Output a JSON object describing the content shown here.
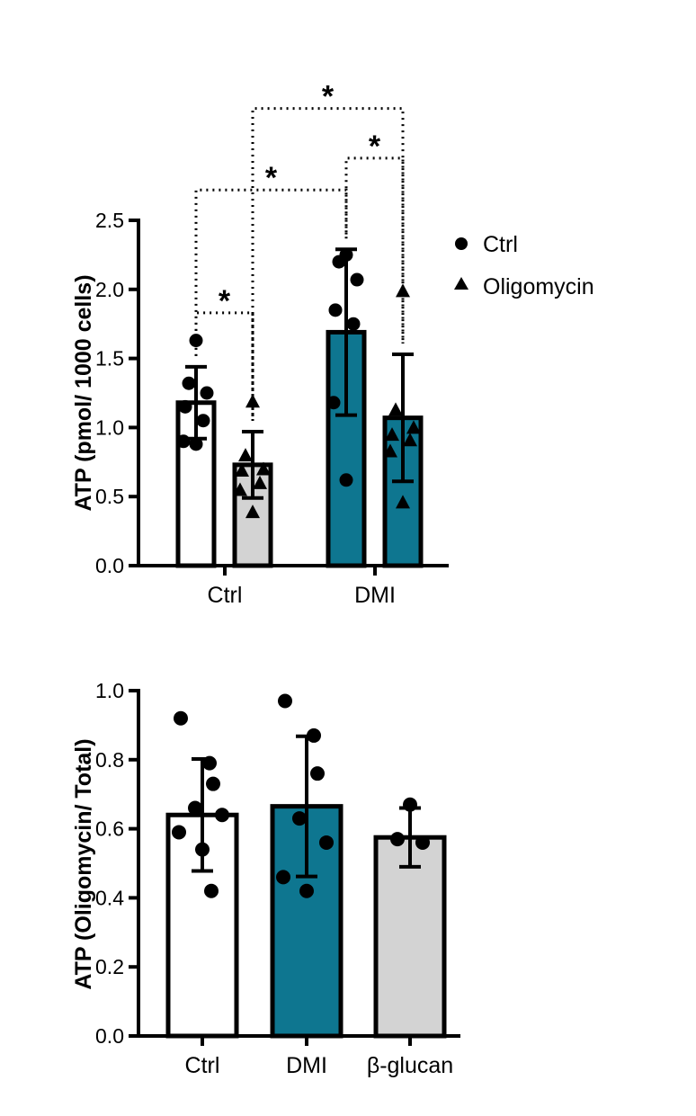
{
  "chart_data": [
    {
      "type": "bar",
      "ylabel": "ATP (pmol/ 1000 cells)",
      "ylim": [
        0,
        2.5
      ],
      "yticks": [
        0.0,
        0.5,
        1.0,
        1.5,
        2.0,
        2.5
      ],
      "ytick_labels": [
        "0.0",
        "0.5",
        "1.0",
        "1.5",
        "2.0",
        "2.5"
      ],
      "categories": [
        "Ctrl",
        "DMI"
      ],
      "legend": {
        "placement": "top-right",
        "entries": [
          {
            "label": "Ctrl",
            "marker": "circle"
          },
          {
            "label": "Oligomycin",
            "marker": "triangle"
          }
        ]
      },
      "series": [
        {
          "name": "Ctrl",
          "marker": "circle",
          "values": [
            1.18,
            1.69
          ],
          "errors": [
            0.26,
            0.6
          ],
          "fills": [
            "#ffffff",
            "#0e7690"
          ],
          "points": [
            [
              1.63,
              1.32,
              1.25,
              1.15,
              1.05,
              0.9,
              0.88
            ],
            [
              2.25,
              2.2,
              2.07,
              1.85,
              1.75,
              1.18,
              0.62
            ]
          ]
        },
        {
          "name": "Oligomycin",
          "marker": "triangle",
          "values": [
            0.73,
            1.07
          ],
          "errors": [
            0.24,
            0.46
          ],
          "fills": [
            "#d3d3d3",
            "#0e7690"
          ],
          "points": [
            [
              1.19,
              0.8,
              0.7,
              0.69,
              0.6,
              0.55,
              0.39
            ],
            [
              1.99,
              1.13,
              1.0,
              0.95,
              0.91,
              0.83,
              0.46
            ]
          ]
        }
      ],
      "significance": [
        {
          "from": [
            0,
            0
          ],
          "to": [
            0,
            1
          ],
          "level": 1.83,
          "label": "*"
        },
        {
          "from": [
            0,
            0
          ],
          "to": [
            1,
            0
          ],
          "level": 2.72,
          "label": "*"
        },
        {
          "from": [
            0,
            1
          ],
          "to": [
            1,
            1
          ],
          "level": 3.31,
          "label": "*"
        },
        {
          "from": [
            1,
            0
          ],
          "to": [
            1,
            1
          ],
          "level": 2.95,
          "label": "*"
        }
      ]
    },
    {
      "type": "bar",
      "ylabel": "ATP (Oligomycin/ Total)",
      "ylim": [
        0,
        1.0
      ],
      "yticks": [
        0.0,
        0.2,
        0.4,
        0.6,
        0.8,
        1.0
      ],
      "ytick_labels": [
        "0.0",
        "0.2",
        "0.4",
        "0.6",
        "0.8",
        "1.0"
      ],
      "categories": [
        "Ctrl",
        "DMI",
        "β-glucan"
      ],
      "values": [
        0.64,
        0.665,
        0.575
      ],
      "errors": [
        0.162,
        0.203,
        0.085
      ],
      "fills": [
        "#ffffff",
        "#0e7690",
        "#d3d3d3"
      ],
      "points": [
        [
          0.92,
          0.79,
          0.73,
          0.66,
          0.64,
          0.59,
          0.54,
          0.42
        ],
        [
          0.97,
          0.87,
          0.76,
          0.63,
          0.56,
          0.46,
          0.42
        ],
        [
          0.67,
          0.57,
          0.56
        ]
      ]
    }
  ]
}
